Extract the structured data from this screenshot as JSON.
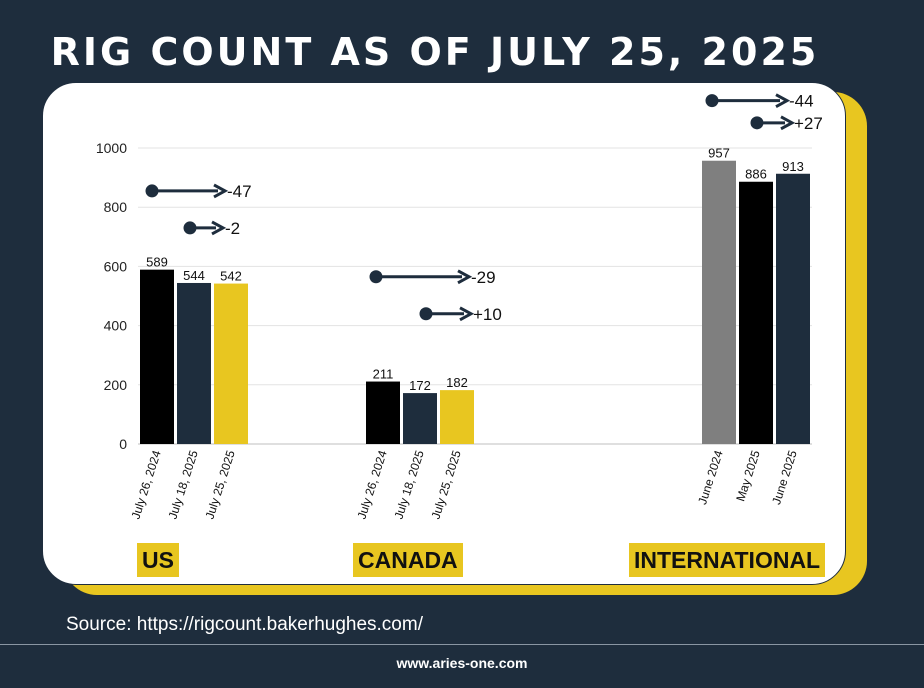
{
  "title": "RIG COUNT AS OF JULY 25, 2025",
  "source": "Source: https://rigcount.bakerhughes.com/",
  "website": "www.aries-one.com",
  "colors": {
    "background": "#1e2d3d",
    "accent": "#e8c620",
    "black": "#000000",
    "navy": "#1e2d3d",
    "gray": "#7f7f7f"
  },
  "chart_data": {
    "type": "bar",
    "ylim": [
      0,
      1000
    ],
    "yticks": [
      0,
      200,
      400,
      600,
      800,
      1000
    ],
    "grid": true,
    "groups": [
      {
        "label": "US",
        "bars": [
          {
            "category": "July 26, 2024",
            "value": 589,
            "color": "#000000"
          },
          {
            "category": "July 18, 2025",
            "value": 544,
            "color": "#1e2d3d"
          },
          {
            "category": "July 25, 2025",
            "value": 542,
            "color": "#e8c620"
          }
        ],
        "annotations": [
          {
            "text": "-47",
            "level": 855
          },
          {
            "text": "-2",
            "level": 730
          }
        ]
      },
      {
        "label": "CANADA",
        "bars": [
          {
            "category": "July 26, 2024",
            "value": 211,
            "color": "#000000"
          },
          {
            "category": "July 18, 2025",
            "value": 172,
            "color": "#1e2d3d"
          },
          {
            "category": "July 25, 2025",
            "value": 182,
            "color": "#e8c620"
          }
        ],
        "annotations": [
          {
            "text": "-29",
            "level": 565
          },
          {
            "text": "+10",
            "level": 440
          }
        ]
      },
      {
        "label": "INTERNATIONAL",
        "bars": [
          {
            "category": "June 2024",
            "value": 957,
            "color": "#7f7f7f"
          },
          {
            "category": "May 2025",
            "value": 886,
            "color": "#000000"
          },
          {
            "category": "June 2025",
            "value": 913,
            "color": "#1e2d3d"
          }
        ],
        "annotations": [
          {
            "text": "-44",
            "level": 1160
          },
          {
            "text": "+27",
            "level": 1085
          }
        ]
      }
    ]
  }
}
